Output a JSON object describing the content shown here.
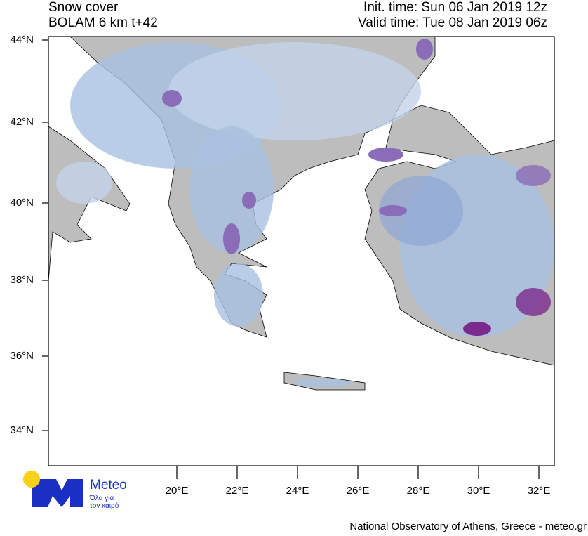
{
  "title": {
    "product": "Snow cover",
    "model": "BOLAM 6 km t+42",
    "init_time": "Init. time: Sun 06 Jan 2019 12z",
    "valid_time": "Valid time: Tue 08 Jan 2019 06z"
  },
  "axes": {
    "lat_labels": [
      "44°N",
      "42°N",
      "40°N",
      "38°N",
      "36°N",
      "34°N"
    ],
    "lon_labels": [
      "20°E",
      "22°E",
      "24°E",
      "26°E",
      "28°E",
      "30°E",
      "32°E"
    ]
  },
  "map": {
    "extent_lon": [
      15.7,
      32.5
    ],
    "extent_lat": [
      33,
      44.1
    ],
    "land_color": "#bdbdbd",
    "sea_color": "#ffffff",
    "snow_colors": [
      "#d6e3f2",
      "#a9c0e0",
      "#8fa6d6",
      "#8a6cb8",
      "#7a2a8c"
    ]
  },
  "logo": {
    "name": "Meteo",
    "tagline_1": "Όλα για",
    "tagline_2": "τον καιρό",
    "brand_color": "#1a2fc4",
    "sun_color": "#f7d117"
  },
  "credit": "National Observatory of Athens, Greece - meteo.gr"
}
